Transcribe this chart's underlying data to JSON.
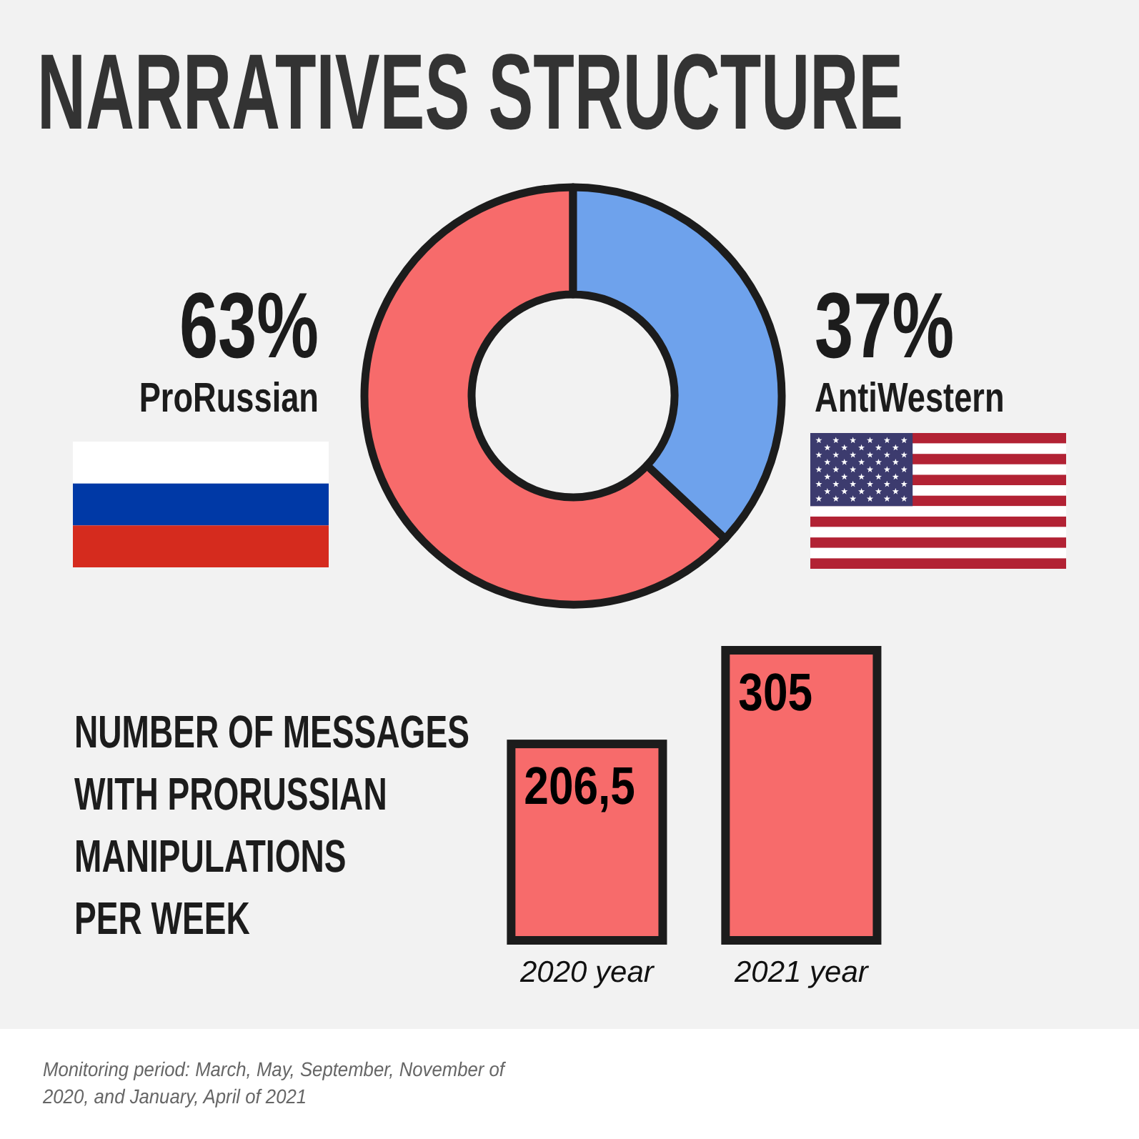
{
  "chart_data": [
    {
      "type": "donut",
      "title": "NARRATIVES STRUCTURE",
      "categories": [
        "ProRussian",
        "AntiWestern"
      ],
      "values": [
        63,
        37
      ],
      "colors": [
        "#f76b6b",
        "#6ea2ec"
      ],
      "value_labels": [
        "63%",
        "37%"
      ]
    },
    {
      "type": "bar",
      "title": "NUMBER OF MESSAGES WITH PRORUSSIAN MANIPULATIONS PER WEEK",
      "categories": [
        "2020 year",
        "2021 year"
      ],
      "values": [
        206.5,
        305
      ],
      "color": "#f76b6b",
      "value_labels": [
        "206,5",
        "305"
      ],
      "annotations": [
        "Monitoring period: March, May, September, November of 2020, and January, April of 2021"
      ]
    }
  ]
}
